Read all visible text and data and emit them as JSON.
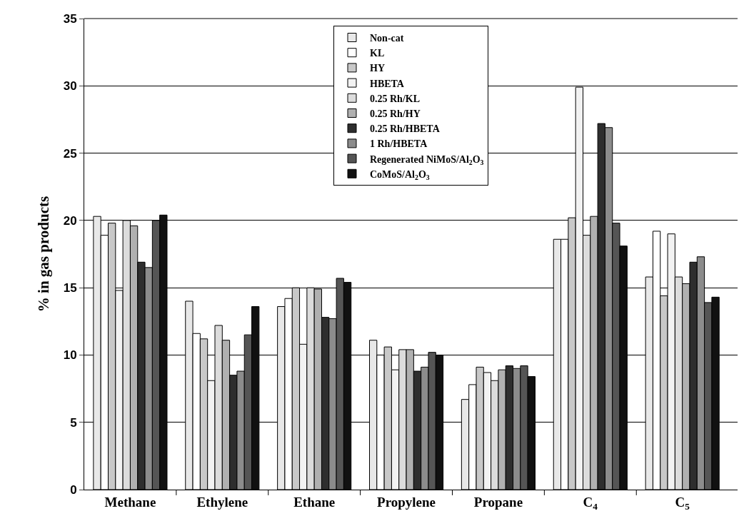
{
  "chart_data": {
    "type": "bar",
    "ylabel": "% in gas products",
    "categories": [
      "Methane",
      "Ethylene",
      "Ethane",
      "Propylene",
      "Propane",
      "C$_{4}$",
      "C$_{5}$"
    ],
    "series": [
      {
        "name": "Non-cat",
        "color": "#e8e8e8",
        "values": [
          20.3,
          14.0,
          13.6,
          11.1,
          6.7,
          18.6,
          15.8
        ]
      },
      {
        "name": "KL",
        "color": "#ffffff",
        "values": [
          18.9,
          11.6,
          14.2,
          10.0,
          7.8,
          18.6,
          19.2
        ]
      },
      {
        "name": "HY",
        "color": "#c8c8c8",
        "values": [
          19.8,
          11.2,
          15.0,
          10.6,
          9.1,
          20.2,
          14.4
        ]
      },
      {
        "name": "HBETA",
        "color": "#f2f2f2",
        "values": [
          14.8,
          8.1,
          10.8,
          8.9,
          8.7,
          29.9,
          19.0
        ]
      },
      {
        "name": "0.25 Rh/KL",
        "color": "#dcdcdc",
        "values": [
          20.0,
          12.2,
          15.0,
          10.4,
          8.1,
          18.9,
          15.8
        ]
      },
      {
        "name": "0.25 Rh/HY",
        "color": "#b0b0b0",
        "values": [
          19.6,
          11.1,
          14.9,
          10.4,
          8.9,
          20.3,
          15.3
        ]
      },
      {
        "name": "0.25 Rh/HBETA",
        "color": "#2e2e2e",
        "values": [
          16.9,
          8.5,
          12.8,
          8.8,
          9.2,
          27.2,
          16.9
        ]
      },
      {
        "name": "1 Rh/HBETA",
        "color": "#8c8c8c",
        "values": [
          16.5,
          8.8,
          12.7,
          9.1,
          9.0,
          26.9,
          17.3
        ]
      },
      {
        "name": "Regenerated NiMoS/Al$_{2}$O$_{3}$",
        "color": "#555555",
        "values": [
          20.0,
          11.5,
          15.7,
          10.2,
          9.2,
          19.8,
          13.9
        ]
      },
      {
        "name": "CoMoS/Al$_{2}$O$_{3}$",
        "color": "#111111",
        "values": [
          20.4,
          13.6,
          15.4,
          10.0,
          8.4,
          18.1,
          14.3
        ]
      }
    ],
    "ylim": [
      0,
      35
    ],
    "yticks": [
      0,
      5,
      10,
      15,
      20,
      25,
      30,
      35
    ],
    "grid": "y",
    "legend": "top center"
  }
}
